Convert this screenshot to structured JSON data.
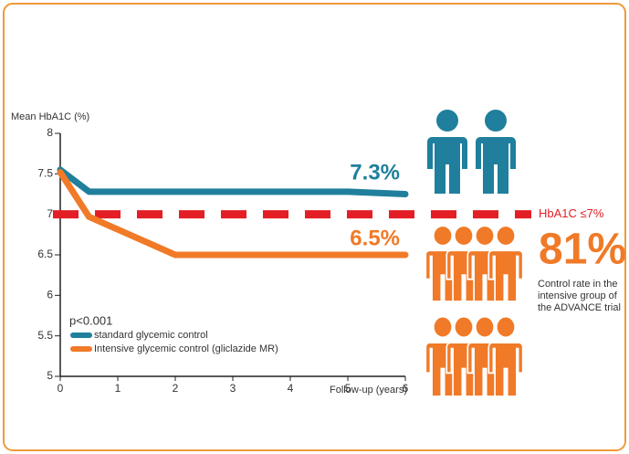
{
  "chart_data": {
    "type": "line",
    "ylabel": "Mean HbA1C (%)",
    "xlabel": "Follow-up (years)",
    "xlim": [
      0,
      6
    ],
    "xticks": [
      0,
      1,
      2,
      3,
      4,
      5,
      6
    ],
    "ylim": [
      5,
      8
    ],
    "yticks": [
      5,
      5.5,
      6,
      6.5,
      7,
      7.5,
      8
    ],
    "series": [
      {
        "name": "standard glycemic control",
        "color": "#1f7f9c",
        "x": [
          0,
          0.5,
          5,
          6
        ],
        "values": [
          7.55,
          7.28,
          7.28,
          7.25
        ]
      },
      {
        "name": "Intensive glycemic control (gliclazide MR)",
        "color": "#f07a28",
        "x": [
          0,
          0.5,
          2,
          6
        ],
        "values": [
          7.52,
          6.97,
          6.5,
          6.5
        ]
      }
    ],
    "threshold": {
      "value": 7,
      "label": "HbA1C ≤7%",
      "color": "#e31e24"
    },
    "annotations": [
      "7.3%",
      "6.5%"
    ],
    "p_value": "p<0.001",
    "highlight": {
      "value": "81%",
      "text": [
        "Control rate in the",
        "intensive group of",
        "the ADVANCE trial"
      ]
    }
  }
}
